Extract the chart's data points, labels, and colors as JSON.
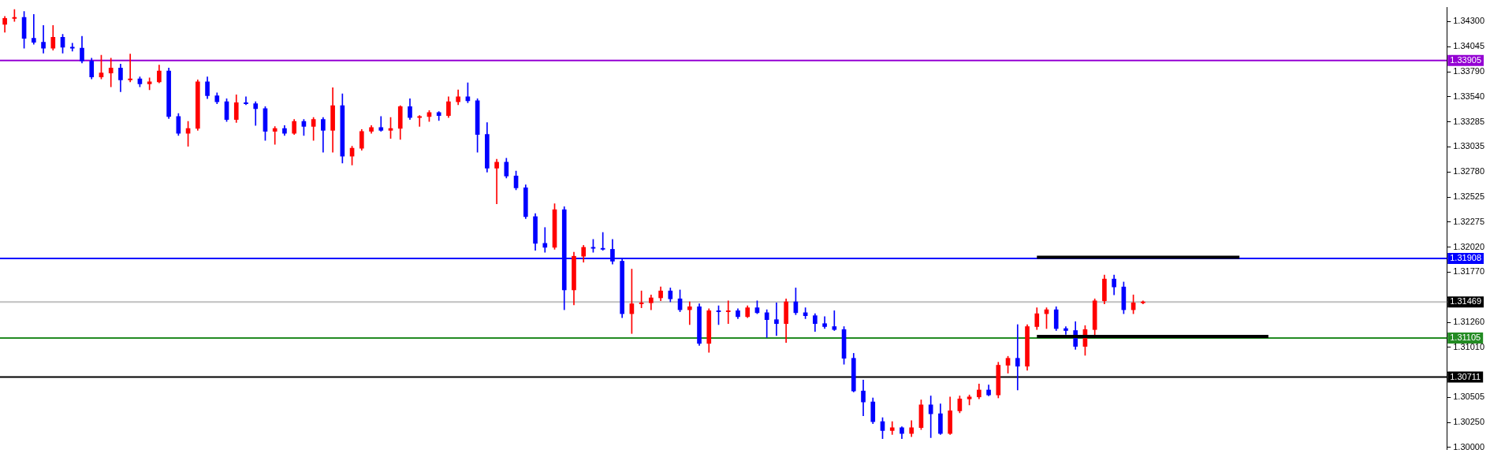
{
  "chart_data": {
    "type": "candlestick",
    "categories": [
      null,
      null,
      null,
      null,
      null,
      null,
      null,
      null,
      null,
      null,
      null,
      null,
      null,
      null,
      null,
      null,
      null,
      null,
      null,
      null,
      null,
      null,
      null,
      null,
      null,
      null,
      null,
      null,
      null,
      null,
      null,
      null,
      null,
      null,
      null,
      null,
      null,
      null,
      null,
      null,
      null,
      null,
      null,
      null,
      null,
      null,
      null,
      null,
      null,
      null,
      null,
      null,
      null,
      null,
      null,
      null,
      null,
      null,
      null,
      null,
      null,
      null,
      null,
      null,
      null,
      null,
      null,
      null,
      null,
      null,
      null,
      null,
      null,
      null,
      null,
      null,
      null,
      null,
      null,
      null,
      null,
      null,
      null,
      null,
      null,
      null,
      null,
      null,
      null,
      null,
      null,
      null,
      null,
      null,
      null,
      null,
      null,
      null,
      null,
      null,
      null,
      null,
      null,
      null,
      null,
      null,
      null,
      null,
      null,
      null,
      null,
      null,
      null,
      null,
      null,
      null,
      null,
      null,
      null,
      null,
      null,
      null,
      null,
      null,
      null,
      null,
      null,
      null,
      null,
      null,
      null,
      null,
      null,
      null,
      null,
      null,
      null,
      null,
      null,
      null,
      null,
      null,
      null,
      null,
      null,
      null,
      null,
      null,
      null,
      null
    ],
    "ohlc": [
      [
        1.3427,
        1.3435,
        1.3419,
        1.3433
      ],
      [
        1.3433,
        1.3442,
        1.343,
        1.3434
      ],
      [
        1.3434,
        1.344,
        1.3403,
        1.3413
      ],
      [
        1.3413,
        1.3437,
        1.3407,
        1.3409
      ],
      [
        1.3409,
        1.3426,
        1.3398,
        1.3403
      ],
      [
        1.3403,
        1.3426,
        1.3401,
        1.3414
      ],
      [
        1.3414,
        1.3417,
        1.3398,
        1.3404
      ],
      [
        1.3404,
        1.3408,
        1.34,
        1.3403
      ],
      [
        1.3403,
        1.3415,
        1.3388,
        1.339
      ],
      [
        1.339,
        1.3393,
        1.3372,
        1.3374
      ],
      [
        1.3374,
        1.3396,
        1.3372,
        1.3378
      ],
      [
        1.3378,
        1.3393,
        1.3364,
        1.3383
      ],
      [
        1.3383,
        1.3387,
        1.3359,
        1.3371
      ],
      [
        1.3371,
        1.3397,
        1.3369,
        1.3372
      ],
      [
        1.3372,
        1.3374,
        1.3364,
        1.3367
      ],
      [
        1.3367,
        1.3373,
        1.3361,
        1.3369
      ],
      [
        1.3369,
        1.3386,
        1.3368,
        1.338
      ],
      [
        1.338,
        1.3383,
        1.3332,
        1.3334
      ],
      [
        1.3334,
        1.3337,
        1.3315,
        1.3317
      ],
      [
        1.3317,
        1.3329,
        1.3304,
        1.3322
      ],
      [
        1.3322,
        1.3371,
        1.332,
        1.3369
      ],
      [
        1.3369,
        1.3374,
        1.3352,
        1.3355
      ],
      [
        1.3355,
        1.3358,
        1.3347,
        1.3349
      ],
      [
        1.3349,
        1.3352,
        1.3329,
        1.3331
      ],
      [
        1.3331,
        1.3356,
        1.3328,
        1.3348
      ],
      [
        1.3348,
        1.3354,
        1.3346,
        1.3347
      ],
      [
        1.3347,
        1.3349,
        1.3325,
        1.3342
      ],
      [
        1.3342,
        1.3344,
        1.331,
        1.3319
      ],
      [
        1.3319,
        1.3324,
        1.3306,
        1.3322
      ],
      [
        1.3322,
        1.3325,
        1.3315,
        1.3317
      ],
      [
        1.3317,
        1.3331,
        1.3316,
        1.3329
      ],
      [
        1.3329,
        1.3331,
        1.3315,
        1.3324
      ],
      [
        1.3324,
        1.3333,
        1.331,
        1.3331
      ],
      [
        1.3331,
        1.3333,
        1.3298,
        1.332
      ],
      [
        1.332,
        1.3363,
        1.3298,
        1.3345
      ],
      [
        1.3345,
        1.3357,
        1.3287,
        1.3294
      ],
      [
        1.3294,
        1.3304,
        1.3285,
        1.3302
      ],
      [
        1.3302,
        1.3321,
        1.33,
        1.3319
      ],
      [
        1.3319,
        1.3325,
        1.3317,
        1.3323
      ],
      [
        1.3323,
        1.3334,
        1.3319,
        1.332
      ],
      [
        1.332,
        1.3333,
        1.3312,
        1.3322
      ],
      [
        1.3322,
        1.3345,
        1.3311,
        1.3344
      ],
      [
        1.3344,
        1.3352,
        1.3331,
        1.3333
      ],
      [
        1.3333,
        1.3335,
        1.3324,
        1.3334
      ],
      [
        1.3334,
        1.334,
        1.3329,
        1.3338
      ],
      [
        1.3338,
        1.3339,
        1.333,
        1.3335
      ],
      [
        1.3335,
        1.3354,
        1.3333,
        1.3349
      ],
      [
        1.3349,
        1.3361,
        1.3346,
        1.3354
      ],
      [
        1.3354,
        1.3368,
        1.3348,
        1.335
      ],
      [
        1.335,
        1.3352,
        1.3298,
        1.3316
      ],
      [
        1.3316,
        1.3328,
        1.3278,
        1.3282
      ],
      [
        1.3282,
        1.3291,
        1.3246,
        1.3288
      ],
      [
        1.3288,
        1.3292,
        1.3272,
        1.3274
      ],
      [
        1.3274,
        1.3279,
        1.326,
        1.3262
      ],
      [
        1.3262,
        1.3265,
        1.3231,
        1.3233
      ],
      [
        1.3233,
        1.3236,
        1.3199,
        1.3206
      ],
      [
        1.3206,
        1.3222,
        1.3197,
        1.3202
      ],
      [
        1.3202,
        1.3246,
        1.32,
        1.324
      ],
      [
        1.324,
        1.3243,
        1.3139,
        1.3159
      ],
      [
        1.3159,
        1.3197,
        1.3144,
        1.3193
      ],
      [
        1.3193,
        1.3204,
        1.3187,
        1.3202
      ],
      [
        1.3202,
        1.321,
        1.3197,
        1.3201
      ],
      [
        1.3201,
        1.3217,
        1.3199,
        1.32
      ],
      [
        1.32,
        1.321,
        1.3185,
        1.3188
      ],
      [
        1.3188,
        1.319,
        1.3131,
        1.3135
      ],
      [
        1.3135,
        1.318,
        1.3115,
        1.3145
      ],
      [
        1.3145,
        1.3158,
        1.3141,
        1.3146
      ],
      [
        1.3146,
        1.3154,
        1.3139,
        1.3151
      ],
      [
        1.3151,
        1.3162,
        1.3148,
        1.3158
      ],
      [
        1.3158,
        1.3161,
        1.3147,
        1.315
      ],
      [
        1.315,
        1.3159,
        1.3137,
        1.3139
      ],
      [
        1.3139,
        1.3147,
        1.3124,
        1.3142
      ],
      [
        1.3142,
        1.3145,
        1.3103,
        1.3105
      ],
      [
        1.3105,
        1.314,
        1.3096,
        1.3138
      ],
      [
        1.3138,
        1.3143,
        1.3124,
        1.3137
      ],
      [
        1.3137,
        1.3148,
        1.3125,
        1.3138
      ],
      [
        1.3138,
        1.314,
        1.313,
        1.3132
      ],
      [
        1.3132,
        1.3143,
        1.3131,
        1.3141
      ],
      [
        1.3141,
        1.3148,
        1.3135,
        1.3136
      ],
      [
        1.3136,
        1.3139,
        1.3111,
        1.3129
      ],
      [
        1.3129,
        1.3146,
        1.3113,
        1.3125
      ],
      [
        1.3125,
        1.315,
        1.3106,
        1.3147
      ],
      [
        1.3147,
        1.3161,
        1.3134,
        1.3136
      ],
      [
        1.3136,
        1.3141,
        1.313,
        1.3133
      ],
      [
        1.3133,
        1.3135,
        1.3117,
        1.3125
      ],
      [
        1.3125,
        1.3132,
        1.312,
        1.3122
      ],
      [
        1.3122,
        1.3138,
        1.3118,
        1.3119
      ],
      [
        1.3119,
        1.3122,
        1.3084,
        1.309
      ],
      [
        1.309,
        1.3095,
        1.3056,
        1.3057
      ],
      [
        1.3057,
        1.3068,
        1.3032,
        1.3046
      ],
      [
        1.3046,
        1.305,
        1.3024,
        1.3026
      ],
      [
        1.3026,
        1.303,
        1.3009,
        1.3017
      ],
      [
        1.3017,
        1.3026,
        1.3013,
        1.302
      ],
      [
        1.302,
        1.3021,
        1.3009,
        1.3014
      ],
      [
        1.3014,
        1.3027,
        1.3011,
        1.302
      ],
      [
        1.302,
        1.3048,
        1.3018,
        1.3043
      ],
      [
        1.3043,
        1.3052,
        1.301,
        1.3034
      ],
      [
        1.3034,
        1.3044,
        1.3013,
        1.3014
      ],
      [
        1.3014,
        1.3051,
        1.3013,
        1.3037
      ],
      [
        1.3037,
        1.3052,
        1.3035,
        1.3049
      ],
      [
        1.3049,
        1.3053,
        1.3043,
        1.3051
      ],
      [
        1.3051,
        1.3064,
        1.3049,
        1.3058
      ],
      [
        1.3058,
        1.3063,
        1.3052,
        1.3053
      ],
      [
        1.3053,
        1.3086,
        1.305,
        1.3083
      ],
      [
        1.3083,
        1.3092,
        1.3075,
        1.309
      ],
      [
        1.309,
        1.3124,
        1.3058,
        1.3082
      ],
      [
        1.3082,
        1.3124,
        1.3078,
        1.3122
      ],
      [
        1.3122,
        1.3141,
        1.3119,
        1.3135
      ],
      [
        1.3135,
        1.3141,
        1.312,
        1.3139
      ],
      [
        1.3139,
        1.3142,
        1.3118,
        1.312
      ],
      [
        1.312,
        1.3122,
        1.3114,
        1.3118
      ],
      [
        1.3118,
        1.3127,
        1.3099,
        1.3102
      ],
      [
        1.3102,
        1.3123,
        1.3093,
        1.3119
      ],
      [
        1.3119,
        1.315,
        1.3112,
        1.3148
      ],
      [
        1.3148,
        1.3174,
        1.3145,
        1.317
      ],
      [
        1.317,
        1.3174,
        1.3154,
        1.3162
      ],
      [
        1.3162,
        1.3167,
        1.3135,
        1.3139
      ],
      [
        1.3139,
        1.3154,
        1.3135,
        1.3146
      ],
      [
        1.3146,
        1.3148,
        1.3145,
        1.31469
      ],
      null,
      null,
      null,
      null,
      null,
      null,
      null,
      null,
      null,
      null,
      null,
      null,
      null,
      null,
      null,
      null,
      null,
      null,
      null,
      null,
      null,
      null,
      null,
      null,
      null,
      null,
      null,
      null,
      null,
      null,
      null
    ],
    "colors": [
      "#ff0000",
      "#ff0000",
      "#0000ff",
      "#0000ff",
      "#0000ff",
      "#ff0000",
      "#0000ff",
      "#0000ff",
      "#0000ff",
      "#0000ff",
      "#ff0000",
      "#ff0000",
      "#0000ff",
      "#ff0000",
      "#0000ff",
      "#ff0000",
      "#ff0000",
      "#0000ff",
      "#0000ff",
      "#ff0000",
      "#ff0000",
      "#0000ff",
      "#0000ff",
      "#0000ff",
      "#ff0000",
      "#0000ff",
      "#0000ff",
      "#0000ff",
      "#ff0000",
      "#0000ff",
      "#ff0000",
      "#0000ff",
      "#ff0000",
      "#0000ff",
      "#ff0000",
      "#0000ff",
      "#ff0000",
      "#ff0000",
      "#ff0000",
      "#0000ff",
      "#ff0000",
      "#ff0000",
      "#0000ff",
      "#ff0000",
      "#ff0000",
      "#0000ff",
      "#ff0000",
      "#ff0000",
      "#0000ff",
      "#0000ff",
      "#0000ff",
      "#ff0000",
      "#0000ff",
      "#0000ff",
      "#0000ff",
      "#0000ff",
      "#0000ff",
      "#ff0000",
      "#0000ff",
      "#ff0000",
      "#ff0000",
      "#0000ff",
      "#0000ff",
      "#0000ff",
      "#0000ff",
      "#ff0000",
      "#ff0000",
      "#ff0000",
      "#ff0000",
      "#0000ff",
      "#0000ff",
      "#ff0000",
      "#0000ff",
      "#ff0000",
      "#0000ff",
      "#ff0000",
      "#0000ff",
      "#ff0000",
      "#0000ff",
      "#0000ff",
      "#0000ff",
      "#ff0000",
      "#0000ff",
      "#0000ff",
      "#0000ff",
      "#0000ff",
      "#0000ff",
      "#0000ff",
      "#0000ff",
      "#0000ff",
      "#0000ff",
      "#0000ff",
      "#ff0000",
      "#0000ff",
      "#ff0000",
      "#ff0000",
      "#0000ff",
      "#0000ff",
      "#ff0000",
      "#ff0000",
      "#ff0000",
      "#ff0000",
      "#0000ff",
      "#ff0000",
      "#ff0000",
      "#0000ff",
      "#ff0000",
      "#ff0000",
      "#ff0000",
      "#0000ff",
      "#0000ff",
      "#0000ff",
      "#ff0000",
      "#ff0000",
      "#ff0000",
      "#0000ff",
      "#0000ff",
      "#ff0000",
      "#ff0000",
      null,
      null,
      null,
      null,
      null,
      null,
      null,
      null,
      null,
      null,
      null,
      null,
      null,
      null,
      null,
      null,
      null,
      null,
      null,
      null,
      null,
      null,
      null,
      null,
      null,
      null,
      null,
      null,
      null,
      null,
      null
    ],
    "series": [
      {
        "type": "line",
        "color": "#000000",
        "values": [
          null,
          null,
          null,
          null,
          null,
          null,
          null,
          null,
          null,
          null,
          null,
          null,
          null,
          null,
          null,
          null,
          null,
          null,
          null,
          null,
          null,
          null,
          null,
          null,
          null,
          null,
          null,
          null,
          null,
          null,
          null,
          null,
          null,
          null,
          null,
          null,
          null,
          null,
          null,
          null,
          null,
          null,
          null,
          null,
          null,
          null,
          null,
          null,
          null,
          null,
          null,
          null,
          null,
          null,
          null,
          null,
          null,
          null,
          null,
          null,
          null,
          null,
          null,
          null,
          null,
          null,
          null,
          null,
          null,
          null,
          null,
          null,
          null,
          null,
          null,
          null,
          null,
          null,
          null,
          null,
          null,
          null,
          null,
          null,
          null,
          null,
          null,
          null,
          null,
          null,
          null,
          null,
          null,
          null,
          null,
          null,
          null,
          null,
          null,
          null,
          null,
          null,
          null,
          null,
          null,
          null,
          null,
          1.3192,
          1.3192,
          1.3192,
          1.3192,
          1.3192,
          1.3192,
          1.3192,
          1.3192,
          1.3192,
          1.3192,
          1.3192,
          1.3192,
          1.3192,
          1.3192,
          1.3192,
          1.3192,
          1.3192,
          1.3192,
          1.3192,
          1.3192,
          1.3192,
          1.3192,
          null,
          null,
          null,
          null,
          null,
          null,
          null,
          null,
          null,
          null,
          null,
          null,
          null,
          null,
          null,
          null,
          null,
          null,
          null,
          null,
          null
        ]
      },
      {
        "type": "line",
        "color": "#000000",
        "values": [
          null,
          null,
          null,
          null,
          null,
          null,
          null,
          null,
          null,
          null,
          null,
          null,
          null,
          null,
          null,
          null,
          null,
          null,
          null,
          null,
          null,
          null,
          null,
          null,
          null,
          null,
          null,
          null,
          null,
          null,
          null,
          null,
          null,
          null,
          null,
          null,
          null,
          null,
          null,
          null,
          null,
          null,
          null,
          null,
          null,
          null,
          null,
          null,
          null,
          null,
          null,
          null,
          null,
          null,
          null,
          null,
          null,
          null,
          null,
          null,
          null,
          null,
          null,
          null,
          null,
          null,
          null,
          null,
          null,
          null,
          null,
          null,
          null,
          null,
          null,
          null,
          null,
          null,
          null,
          null,
          null,
          null,
          null,
          null,
          null,
          null,
          null,
          null,
          null,
          null,
          null,
          null,
          null,
          null,
          null,
          null,
          null,
          null,
          null,
          null,
          null,
          null,
          null,
          null,
          null,
          null,
          null,
          1.3112,
          1.3112,
          1.3112,
          1.3112,
          1.3112,
          1.3112,
          1.3112,
          1.3112,
          1.3112,
          1.3112,
          1.3112,
          1.3112,
          1.3112,
          1.3112,
          1.3112,
          1.3112,
          1.3112,
          1.3112,
          1.3112,
          1.3112,
          1.3112,
          1.3112,
          1.3112,
          1.3112,
          1.3112,
          null,
          null,
          null,
          null,
          null,
          null,
          null,
          null,
          null,
          null,
          null,
          null,
          null,
          null,
          null,
          null,
          null,
          null
        ]
      }
    ],
    "ylim": [
      1.2998,
      1.3444
    ],
    "yticks": [
      {
        "value": 1.3,
        "label": "1.30000"
      },
      {
        "value": 1.3025,
        "label": "1.30250"
      },
      {
        "value": 1.30505,
        "label": "1.30505"
      },
      {
        "value": 1.30755,
        "label": null
      },
      {
        "value": 1.3101,
        "label": "1.31010"
      },
      {
        "value": 1.3126,
        "label": "1.31260"
      },
      {
        "value": 1.31515,
        "label": null
      },
      {
        "value": 1.3177,
        "label": "1.31770"
      },
      {
        "value": 1.3202,
        "label": "1.32020"
      },
      {
        "value": 1.32275,
        "label": "1.32275"
      },
      {
        "value": 1.32525,
        "label": "1.32525"
      },
      {
        "value": 1.3278,
        "label": "1.32780"
      },
      {
        "value": 1.33035,
        "label": "1.33035"
      },
      {
        "value": 1.33285,
        "label": "1.33285"
      },
      {
        "value": 1.3354,
        "label": "1.33540"
      },
      {
        "value": 1.3379,
        "label": "1.33790"
      },
      {
        "value": 1.34045,
        "label": "1.34045"
      },
      {
        "value": 1.343,
        "label": "1.34300"
      }
    ],
    "ref_lines": [
      {
        "axis": "y",
        "value": 1.33905,
        "label": "1.33905",
        "color": "#9400d3"
      },
      {
        "axis": "y",
        "value": 1.31908,
        "label": "1.31908",
        "color": "#0000ff"
      },
      {
        "axis": "y",
        "value": 1.31469,
        "label": "1.31469",
        "color": "#c0c0c0"
      },
      {
        "axis": "y",
        "value": 1.31105,
        "label": "1.31105",
        "color": "#228b22"
      },
      {
        "axis": "y",
        "value": 1.30711,
        "label": "1.30711",
        "color": "#000000"
      }
    ],
    "tick_labels": "y",
    "grid": false,
    "legend": false
  }
}
